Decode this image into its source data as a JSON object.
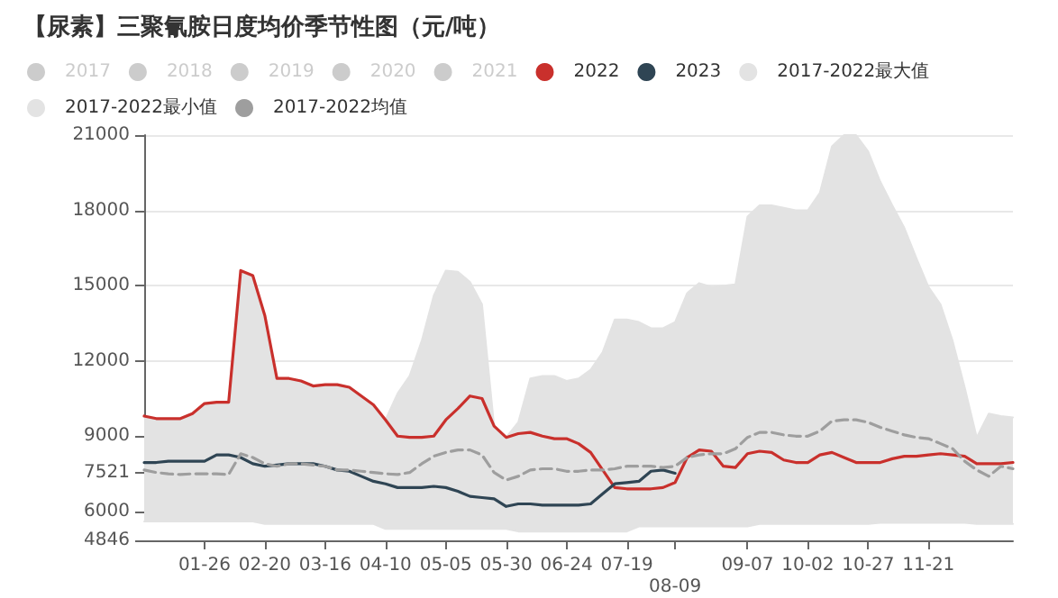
{
  "chart_data": {
    "type": "line",
    "title": "【尿素】三聚氰胺日度均价季节性图（元/吨）",
    "categories": [
      null,
      null,
      null,
      null,
      null,
      "01-26",
      null,
      null,
      null,
      null,
      "02-20",
      null,
      null,
      null,
      null,
      "03-16",
      null,
      null,
      null,
      null,
      "04-10",
      null,
      null,
      null,
      null,
      "05-05",
      null,
      null,
      null,
      null,
      "05-30",
      null,
      null,
      null,
      null,
      "06-24",
      null,
      null,
      null,
      null,
      "07-19",
      null,
      null,
      null,
      "08-09",
      null,
      null,
      null,
      null,
      null,
      "09-07",
      null,
      null,
      null,
      null,
      "10-02",
      null,
      null,
      null,
      null,
      "10-27",
      null,
      null,
      null,
      null,
      "11-21",
      null,
      null,
      null,
      null,
      null,
      null,
      null
    ],
    "series": [
      {
        "name": "2017",
        "color": "#cccccc",
        "values": [
          null,
          null,
          null,
          null,
          null,
          null,
          null,
          null,
          null,
          null,
          null,
          null,
          null,
          null,
          null,
          null,
          null,
          null,
          null,
          null,
          null,
          null,
          null,
          null,
          null,
          null,
          null,
          null,
          null,
          null,
          null,
          null,
          null,
          null,
          null,
          null,
          null,
          null,
          null,
          null,
          null,
          null,
          null,
          null,
          null,
          null,
          null,
          null,
          null,
          null,
          null,
          null,
          null,
          null,
          null,
          null,
          null,
          null,
          null,
          null,
          null,
          null,
          null,
          null,
          null,
          null,
          null,
          null,
          null,
          null,
          null,
          null,
          null
        ]
      },
      {
        "name": "2018",
        "color": "#cccccc",
        "values": [
          null,
          null,
          null,
          null,
          null,
          null,
          null,
          null,
          null,
          null,
          null,
          null,
          null,
          null,
          null,
          null,
          null,
          null,
          null,
          null,
          null,
          null,
          null,
          null,
          null,
          null,
          null,
          null,
          null,
          null,
          null,
          null,
          null,
          null,
          null,
          null,
          null,
          null,
          null,
          null,
          null,
          null,
          null,
          null,
          null,
          null,
          null,
          null,
          null,
          null,
          null,
          null,
          null,
          null,
          null,
          null,
          null,
          null,
          null,
          null,
          null,
          null,
          null,
          null,
          null,
          null,
          null,
          null,
          null,
          null,
          null,
          null,
          null
        ]
      },
      {
        "name": "2019",
        "color": "#cccccc",
        "values": [
          null,
          null,
          null,
          null,
          null,
          null,
          null,
          null,
          null,
          null,
          null,
          null,
          null,
          null,
          null,
          null,
          null,
          null,
          null,
          null,
          null,
          null,
          null,
          null,
          null,
          null,
          null,
          null,
          null,
          null,
          null,
          null,
          null,
          null,
          null,
          null,
          null,
          null,
          null,
          null,
          null,
          null,
          null,
          null,
          null,
          null,
          null,
          null,
          null,
          null,
          null,
          null,
          null,
          null,
          null,
          null,
          null,
          null,
          null,
          null,
          null,
          null,
          null,
          null,
          null,
          null,
          null,
          null,
          null,
          null,
          null,
          null,
          null
        ]
      },
      {
        "name": "2020",
        "color": "#cccccc",
        "values": [
          null,
          null,
          null,
          null,
          null,
          null,
          null,
          null,
          null,
          null,
          null,
          null,
          null,
          null,
          null,
          null,
          null,
          null,
          null,
          null,
          null,
          null,
          null,
          null,
          null,
          null,
          null,
          null,
          null,
          null,
          null,
          null,
          null,
          null,
          null,
          null,
          null,
          null,
          null,
          null,
          null,
          null,
          null,
          null,
          null,
          null,
          null,
          null,
          null,
          null,
          null,
          null,
          null,
          null,
          null,
          null,
          null,
          null,
          null,
          null,
          null,
          null,
          null,
          null,
          null,
          null,
          null,
          null,
          null,
          null,
          null,
          null,
          null
        ]
      },
      {
        "name": "2021",
        "color": "#cccccc",
        "values": [
          null,
          null,
          null,
          null,
          null,
          null,
          null,
          null,
          null,
          null,
          null,
          null,
          null,
          null,
          null,
          null,
          null,
          null,
          null,
          null,
          null,
          null,
          null,
          null,
          null,
          null,
          null,
          null,
          null,
          null,
          null,
          null,
          null,
          null,
          null,
          null,
          null,
          null,
          null,
          null,
          null,
          null,
          null,
          null,
          null,
          null,
          null,
          null,
          null,
          null,
          null,
          null,
          null,
          null,
          null,
          null,
          null,
          null,
          null,
          null,
          null,
          null,
          null,
          null,
          null,
          null,
          null,
          null,
          null,
          null,
          null,
          null,
          null
        ]
      },
      {
        "name": "2022",
        "color": "#c9302c",
        "values": [
          9800,
          9700,
          9700,
          9700,
          9900,
          10300,
          10350,
          10350,
          15600,
          15400,
          13800,
          11300,
          11300,
          11200,
          11000,
          11050,
          11050,
          10950,
          10600,
          10250,
          9650,
          9000,
          8950,
          8950,
          9000,
          9650,
          10100,
          10600,
          10500,
          9400,
          8950,
          9100,
          9150,
          9000,
          8900,
          8900,
          8700,
          8350,
          7650,
          6950,
          6900,
          6900,
          6900,
          6950,
          7150,
          8150,
          8450,
          8400,
          7800,
          7750,
          8300,
          8400,
          8350,
          8050,
          7950,
          7950,
          8250,
          8350,
          8150,
          7950,
          7950,
          7950,
          8100,
          8200,
          8200,
          8250,
          8300,
          8250,
          8200,
          7900,
          7900,
          7900,
          7950
        ]
      },
      {
        "name": "2023",
        "color": "#2f4554",
        "values": [
          7950,
          7950,
          8000,
          8000,
          8000,
          8000,
          8250,
          8250,
          8150,
          7900,
          7800,
          7850,
          7900,
          7900,
          7900,
          7800,
          7650,
          7600,
          7400,
          7200,
          7100,
          6950,
          6950,
          6950,
          7000,
          6950,
          6800,
          6600,
          6550,
          6500,
          6200,
          6300,
          6300,
          6250,
          6250,
          6250,
          6250,
          6300,
          6700,
          7100,
          7150,
          7200,
          7600,
          7650,
          7521,
          null,
          null,
          null,
          null,
          null,
          null,
          null,
          null,
          null,
          null,
          null,
          null,
          null,
          null,
          null,
          null,
          null,
          null,
          null,
          null,
          null,
          null,
          null,
          null,
          null,
          null,
          null,
          null
        ]
      },
      {
        "name": "2017-2022最大值",
        "type": "area",
        "color": "#e3e3e3",
        "values": [
          9800,
          9700,
          9700,
          9700,
          9900,
          10300,
          10350,
          10350,
          15600,
          15400,
          13800,
          11300,
          11300,
          11200,
          11000,
          11050,
          11050,
          10950,
          10600,
          10250,
          9650,
          10700,
          11400,
          12800,
          14600,
          15600,
          15550,
          15150,
          14250,
          9400,
          8950,
          9550,
          11300,
          11400,
          11400,
          11200,
          11300,
          11650,
          12350,
          13650,
          13650,
          13550,
          13300,
          13300,
          13550,
          14700,
          15100,
          14950,
          15000,
          15050,
          17750,
          18200,
          18200,
          18100,
          18000,
          18000,
          18700,
          20550,
          21000,
          21000,
          20350,
          19150,
          18200,
          17300,
          16100,
          14950,
          14250,
          12800,
          10950,
          8950,
          9900,
          9800,
          9750
        ]
      },
      {
        "name": "2017-2022最小值",
        "type": "area",
        "color": "#e3e3e3",
        "values": [
          5600,
          5600,
          5600,
          5600,
          5600,
          5600,
          5600,
          5600,
          5600,
          5600,
          5500,
          5500,
          5500,
          5500,
          5500,
          5500,
          5500,
          5500,
          5500,
          5500,
          5300,
          5300,
          5300,
          5300,
          5300,
          5300,
          5300,
          5300,
          5300,
          5300,
          5300,
          5200,
          5200,
          5200,
          5200,
          5200,
          5200,
          5200,
          5200,
          5200,
          5200,
          5400,
          5400,
          5400,
          5400,
          5400,
          5400,
          5400,
          5400,
          5400,
          5400,
          5500,
          5500,
          5500,
          5500,
          5500,
          5500,
          5500,
          5500,
          5500,
          5500,
          5550,
          5550,
          5550,
          5550,
          5550,
          5550,
          5550,
          5550,
          5500,
          5500,
          5500,
          5500
        ]
      },
      {
        "name": "2017-2022均值",
        "color": "#9e9e9e",
        "line_style": "dashed",
        "values": [
          7650,
          7550,
          7500,
          7470,
          7500,
          7500,
          7500,
          7470,
          8300,
          8150,
          7900,
          7800,
          7900,
          7900,
          7850,
          7800,
          7650,
          7650,
          7600,
          7550,
          7500,
          7470,
          7550,
          7900,
          8200,
          8350,
          8450,
          8450,
          8250,
          7550,
          7250,
          7400,
          7650,
          7700,
          7700,
          7600,
          7600,
          7650,
          7650,
          7700,
          7800,
          7800,
          7800,
          7750,
          7800,
          8150,
          8250,
          8300,
          8300,
          8500,
          8950,
          9150,
          9150,
          9050,
          9000,
          9000,
          9200,
          9600,
          9650,
          9650,
          9550,
          9350,
          9200,
          9050,
          8950,
          8900,
          8700,
          8500,
          8000,
          7650,
          7400,
          7800,
          7700
        ]
      }
    ],
    "ylim": [
      4846,
      21000
    ],
    "yticks": [
      4846,
      6000,
      7521,
      9000,
      12000,
      15000,
      18000,
      21000
    ],
    "grid": "y",
    "legend": "top left",
    "marker": "none",
    "line_style": "solid"
  }
}
